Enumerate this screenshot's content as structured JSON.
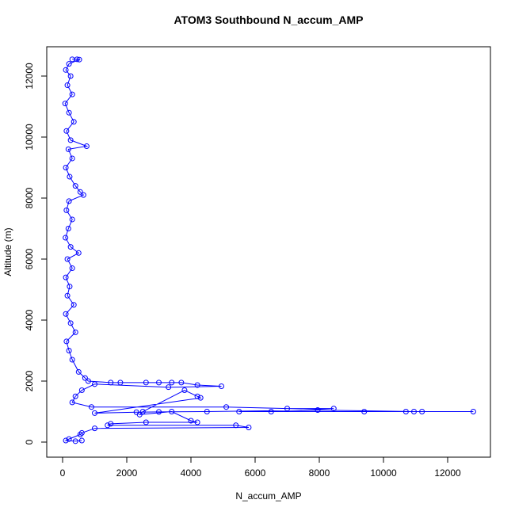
{
  "chart_data": {
    "type": "scatter",
    "lines": true,
    "title": "ATOM3 Southbound N_accum_AMP",
    "x_label": "N_accum_AMP",
    "y_label": "Altitude (m)",
    "color": "#0000ff",
    "xlim": [
      -494,
      13333
    ],
    "ylim": [
      -494,
      12961
    ],
    "xticks": [
      0,
      2000,
      4000,
      6000,
      8000,
      10000,
      12000
    ],
    "yticks": [
      0,
      2000,
      4000,
      6000,
      8000,
      10000,
      12000
    ],
    "x": [
      300,
      450,
      520,
      200,
      100,
      250,
      150,
      300,
      80,
      200,
      350,
      120,
      250,
      750,
      180,
      300,
      100,
      220,
      400,
      550,
      650,
      200,
      120,
      300,
      180,
      90,
      250,
      500,
      150,
      300,
      100,
      220,
      150,
      350,
      100,
      250,
      400,
      120,
      200,
      300,
      500,
      700,
      800,
      1500,
      1800,
      2600,
      3000,
      3400,
      3700,
      4200,
      4950,
      3300,
      1000,
      600,
      400,
      300,
      900,
      5100,
      7000,
      8450,
      6500,
      5500,
      9400,
      10700,
      11200,
      12800,
      10950,
      7950,
      4500,
      3000,
      2300,
      1000,
      4300,
      4200,
      3800,
      2500,
      2400,
      3400,
      4000,
      4200,
      2600,
      1500,
      1400,
      5400,
      5800,
      1000,
      600,
      550,
      200,
      100,
      400,
      600
    ],
    "y": [
      12550,
      12550,
      12540,
      12400,
      12200,
      12000,
      11700,
      11400,
      11100,
      10800,
      10500,
      10200,
      9900,
      9700,
      9600,
      9300,
      9000,
      8700,
      8400,
      8200,
      8100,
      7900,
      7600,
      7300,
      7000,
      6700,
      6400,
      6200,
      6000,
      5700,
      5400,
      5100,
      4800,
      4500,
      4200,
      3900,
      3600,
      3300,
      3000,
      2700,
      2300,
      2100,
      2000,
      1950,
      1950,
      1950,
      1950,
      1950,
      1950,
      1870,
      1830,
      1800,
      1900,
      1700,
      1500,
      1300,
      1150,
      1150,
      1100,
      1100,
      1000,
      1000,
      1000,
      1000,
      1000,
      1000,
      1000,
      1050,
      1000,
      990,
      980,
      950,
      1450,
      1500,
      1700,
      1000,
      900,
      1000,
      700,
      650,
      650,
      600,
      550,
      550,
      480,
      450,
      300,
      250,
      100,
      50,
      30,
      50
    ]
  }
}
